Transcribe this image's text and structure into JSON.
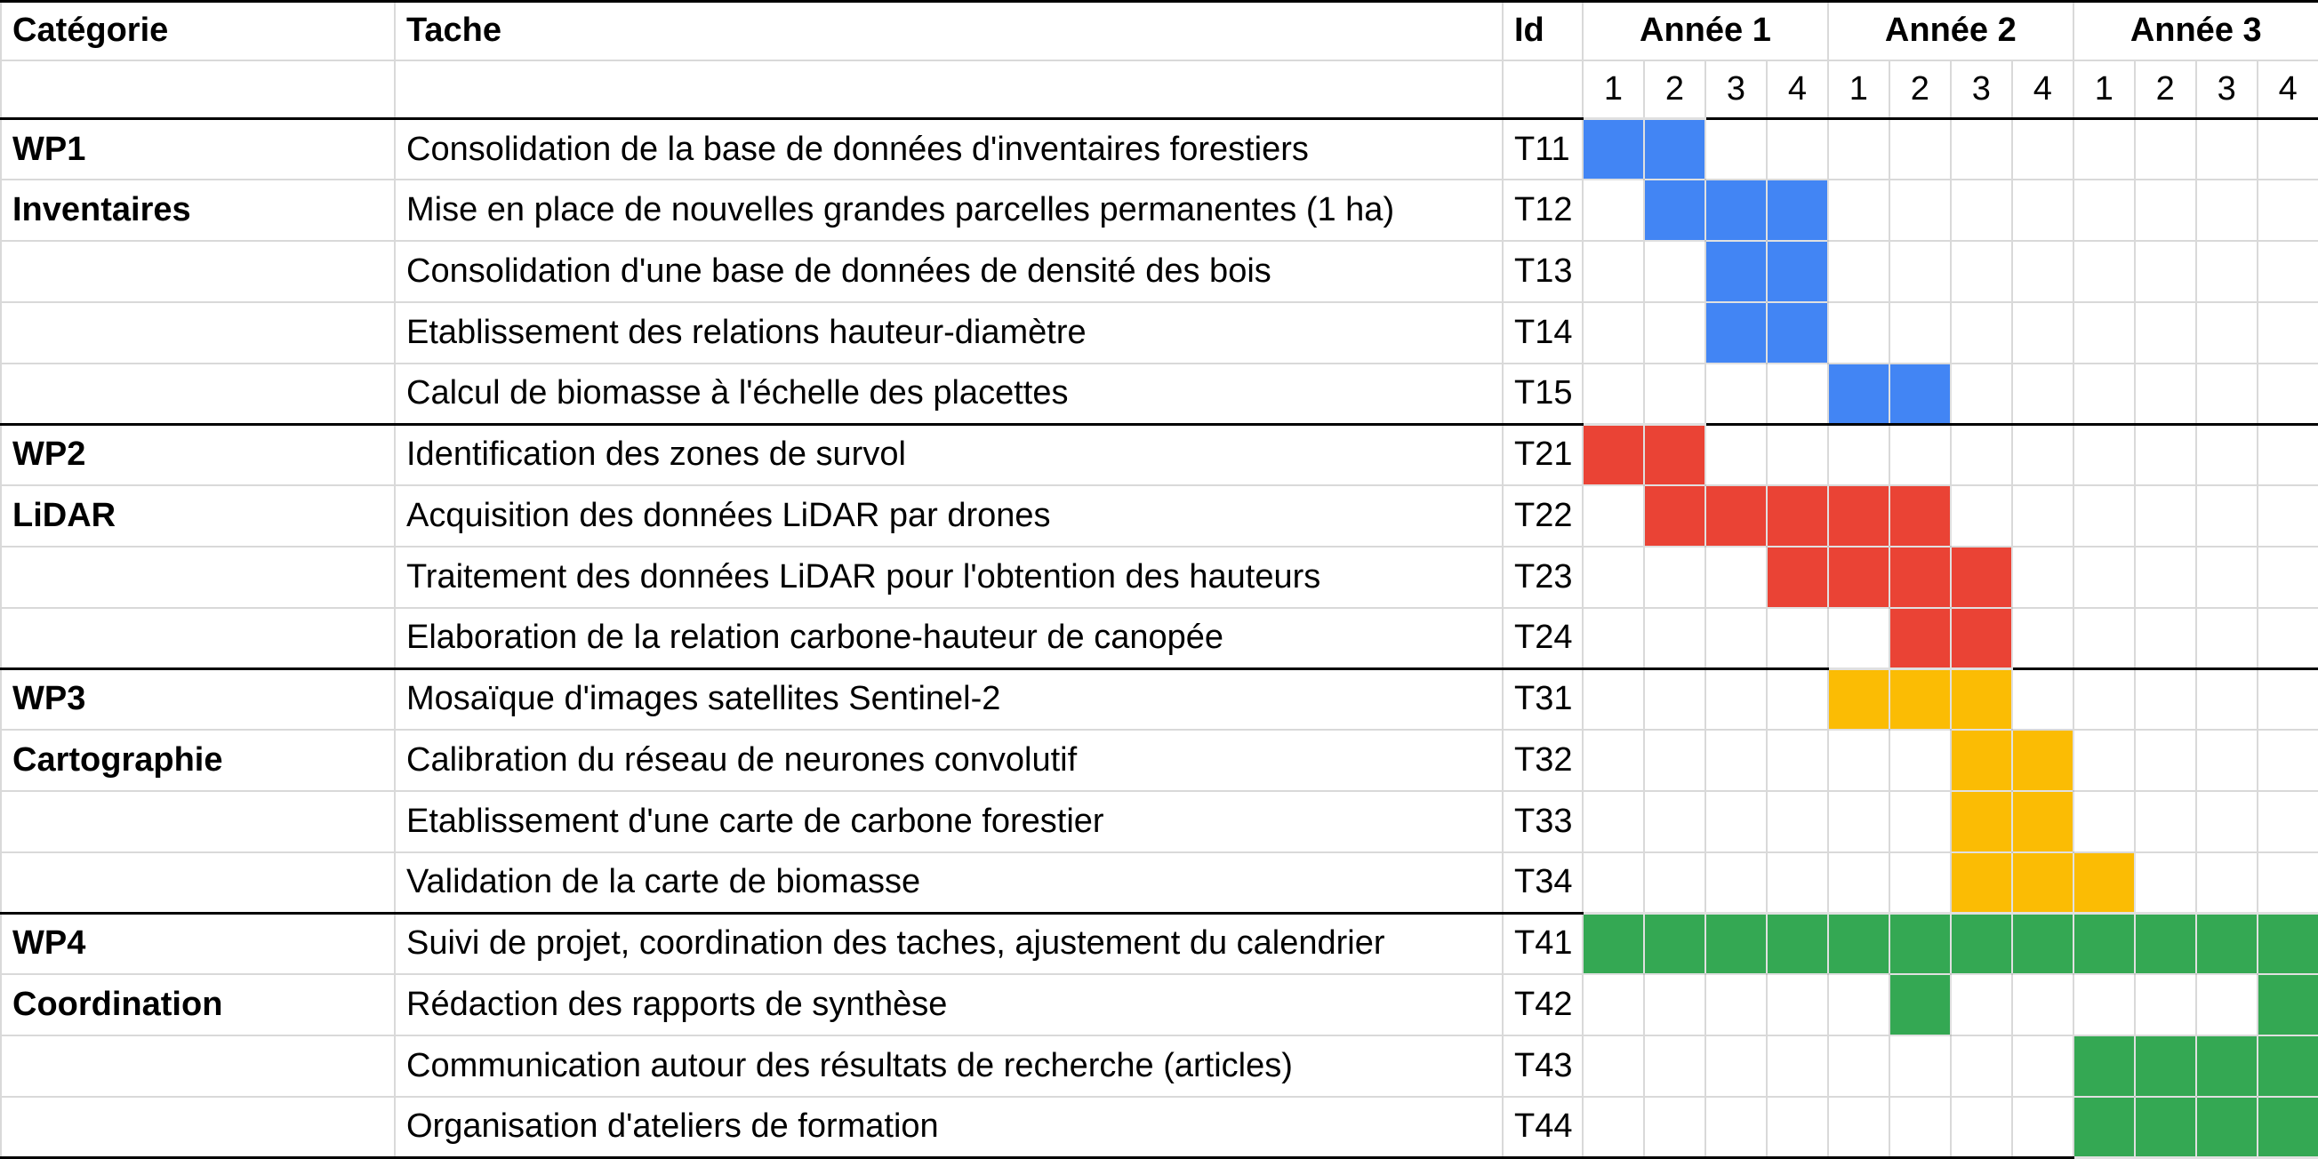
{
  "header": {
    "category": "Catégorie",
    "task": "Tache",
    "id": "Id",
    "years": [
      "Année 1",
      "Année 2",
      "Année 3"
    ],
    "quarters": [
      "1",
      "2",
      "3",
      "4"
    ]
  },
  "colors": {
    "WP1": "#4285f4",
    "WP2": "#ea4335",
    "WP3": "#fbbc04",
    "WP4": "#34a853"
  },
  "groups": [
    {
      "wp": "WP1",
      "name": "Inventaires",
      "tasks": [
        {
          "label": "Consolidation de la base de données d'inventaires forestiers",
          "id": "T11",
          "active": [
            1,
            2
          ]
        },
        {
          "label": "Mise en place de nouvelles grandes parcelles permanentes (1 ha)",
          "id": "T12",
          "active": [
            2,
            3,
            4
          ]
        },
        {
          "label": "Consolidation d'une base de données de densité des bois",
          "id": "T13",
          "active": [
            3,
            4
          ]
        },
        {
          "label": "Etablissement des relations hauteur-diamètre",
          "id": "T14",
          "active": [
            3,
            4
          ]
        },
        {
          "label": "Calcul de biomasse à l'échelle des placettes",
          "id": "T15",
          "active": [
            5,
            6
          ]
        }
      ]
    },
    {
      "wp": "WP2",
      "name": "LiDAR",
      "tasks": [
        {
          "label": "Identification des zones de survol",
          "id": "T21",
          "active": [
            1,
            2
          ]
        },
        {
          "label": "Acquisition des données LiDAR par drones",
          "id": "T22",
          "active": [
            2,
            3,
            4,
            5,
            6
          ]
        },
        {
          "label": "Traitement des données LiDAR pour l'obtention des hauteurs",
          "id": "T23",
          "active": [
            4,
            5,
            6,
            7
          ]
        },
        {
          "label": "Elaboration de la relation carbone-hauteur de canopée",
          "id": "T24",
          "active": [
            6,
            7
          ]
        }
      ]
    },
    {
      "wp": "WP3",
      "name": "Cartographie",
      "tasks": [
        {
          "label": "Mosaïque d'images satellites Sentinel-2",
          "id": "T31",
          "active": [
            5,
            6,
            7
          ]
        },
        {
          "label": "Calibration du réseau de neurones convolutif",
          "id": "T32",
          "active": [
            7,
            8
          ]
        },
        {
          "label": "Etablissement d'une carte de carbone forestier",
          "id": "T33",
          "active": [
            7,
            8
          ]
        },
        {
          "label": "Validation de la carte de biomasse",
          "id": "T34",
          "active": [
            7,
            8,
            9
          ]
        }
      ]
    },
    {
      "wp": "WP4",
      "name": "Coordination",
      "tasks": [
        {
          "label": "Suivi de projet, coordination des taches, ajustement du calendrier",
          "id": "T41",
          "active": [
            1,
            2,
            3,
            4,
            5,
            6,
            7,
            8,
            9,
            10,
            11,
            12
          ]
        },
        {
          "label": "Rédaction des rapports de synthèse",
          "id": "T42",
          "active": [
            6,
            12
          ]
        },
        {
          "label": "Communication autour des résultats de recherche (articles)",
          "id": "T43",
          "active": [
            9,
            10,
            11,
            12
          ]
        },
        {
          "label": "Organisation d'ateliers de formation",
          "id": "T44",
          "active": [
            9,
            10,
            11,
            12
          ]
        }
      ]
    }
  ]
}
